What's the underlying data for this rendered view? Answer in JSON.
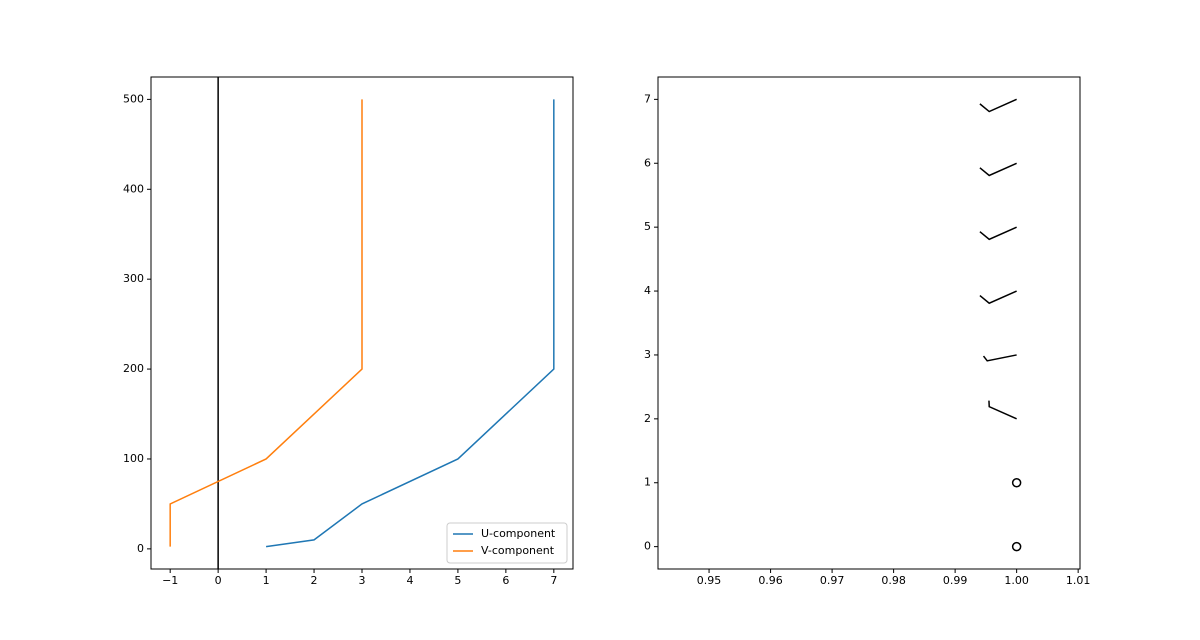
{
  "chart_data": [
    {
      "type": "line",
      "y": [
        2.5,
        10,
        50,
        100,
        200,
        500
      ],
      "series": [
        {
          "name": "U-component",
          "color": "#1f77b4",
          "values": [
            1,
            2,
            3,
            5,
            7,
            7
          ]
        },
        {
          "name": "V-component",
          "color": "#ff7f0e",
          "values": [
            -1,
            -1,
            -1,
            1,
            3,
            3
          ]
        }
      ],
      "xlim": [
        -1.4,
        7.4
      ],
      "ylim": [
        -22.4,
        524.9
      ],
      "xticks": [
        {
          "value": -1,
          "label": "−1"
        },
        0,
        1,
        2,
        3,
        4,
        5,
        6,
        7
      ],
      "yticks": [
        0,
        100,
        200,
        300,
        400,
        500
      ],
      "axvline": {
        "x": 0,
        "color": "#000000"
      },
      "legend": "lower right"
    },
    {
      "type": "barbs",
      "x": [
        1,
        1,
        1,
        1,
        1,
        1,
        1,
        1
      ],
      "y": [
        0,
        1,
        2,
        3,
        4,
        5,
        6,
        7
      ],
      "u": [
        0,
        0,
        4.5,
        5,
        9,
        9,
        9,
        9
      ],
      "v": [
        0,
        0,
        -2,
        1,
        4,
        4,
        4,
        4
      ],
      "color": "#000000",
      "xlim": [
        0.9417,
        1.0103
      ],
      "ylim": [
        -0.35,
        7.35
      ],
      "xticks": [
        0.95,
        0.96,
        0.97,
        0.98,
        0.99,
        {
          "value": 1,
          "label": "1.00"
        },
        1.01
      ],
      "yticks": [
        0,
        1,
        2,
        3,
        4,
        5,
        6,
        7
      ]
    }
  ]
}
